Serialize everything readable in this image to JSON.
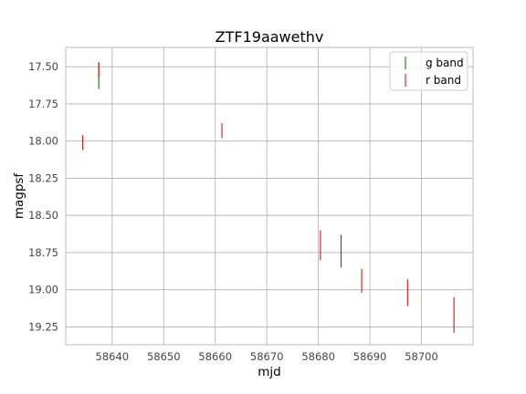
{
  "chart_data": {
    "type": "scatter",
    "title": "ZTF19aawethv",
    "xlabel": "mjd",
    "ylabel": "magpsf",
    "xlim": [
      58631,
      58710
    ],
    "ylim": [
      19.37,
      17.37
    ],
    "y_inverted": true,
    "grid": true,
    "legend_position": "top-right",
    "xticks": [
      58640,
      58650,
      58660,
      58670,
      58680,
      58690,
      58700
    ],
    "xtick_labels": [
      "58640",
      "58650",
      "58660",
      "58670",
      "58680",
      "58690",
      "58700"
    ],
    "yticks": [
      17.5,
      17.75,
      18.0,
      18.25,
      18.5,
      18.75,
      19.0,
      19.25
    ],
    "ytick_labels": [
      "17.50",
      "17.75",
      "18.00",
      "18.25",
      "18.50",
      "18.75",
      "19.00",
      "19.25"
    ],
    "series": [
      {
        "name": "g band",
        "color": "#006400",
        "x": [
          58637.4
        ],
        "y": [
          17.56
        ],
        "yerr": [
          0.09
        ]
      },
      {
        "name": "r band",
        "color": "#cc0000",
        "x": [
          58634.3,
          58637.4,
          58661.3,
          58680.4,
          58684.4,
          58688.4,
          58697.3,
          58706.3
        ],
        "y": [
          18.01,
          17.52,
          17.93,
          18.7,
          18.74,
          18.94,
          19.02,
          19.17
        ],
        "yerr": [
          0.05,
          0.05,
          0.05,
          0.1,
          0.11,
          0.08,
          0.09,
          0.12
        ]
      }
    ]
  }
}
